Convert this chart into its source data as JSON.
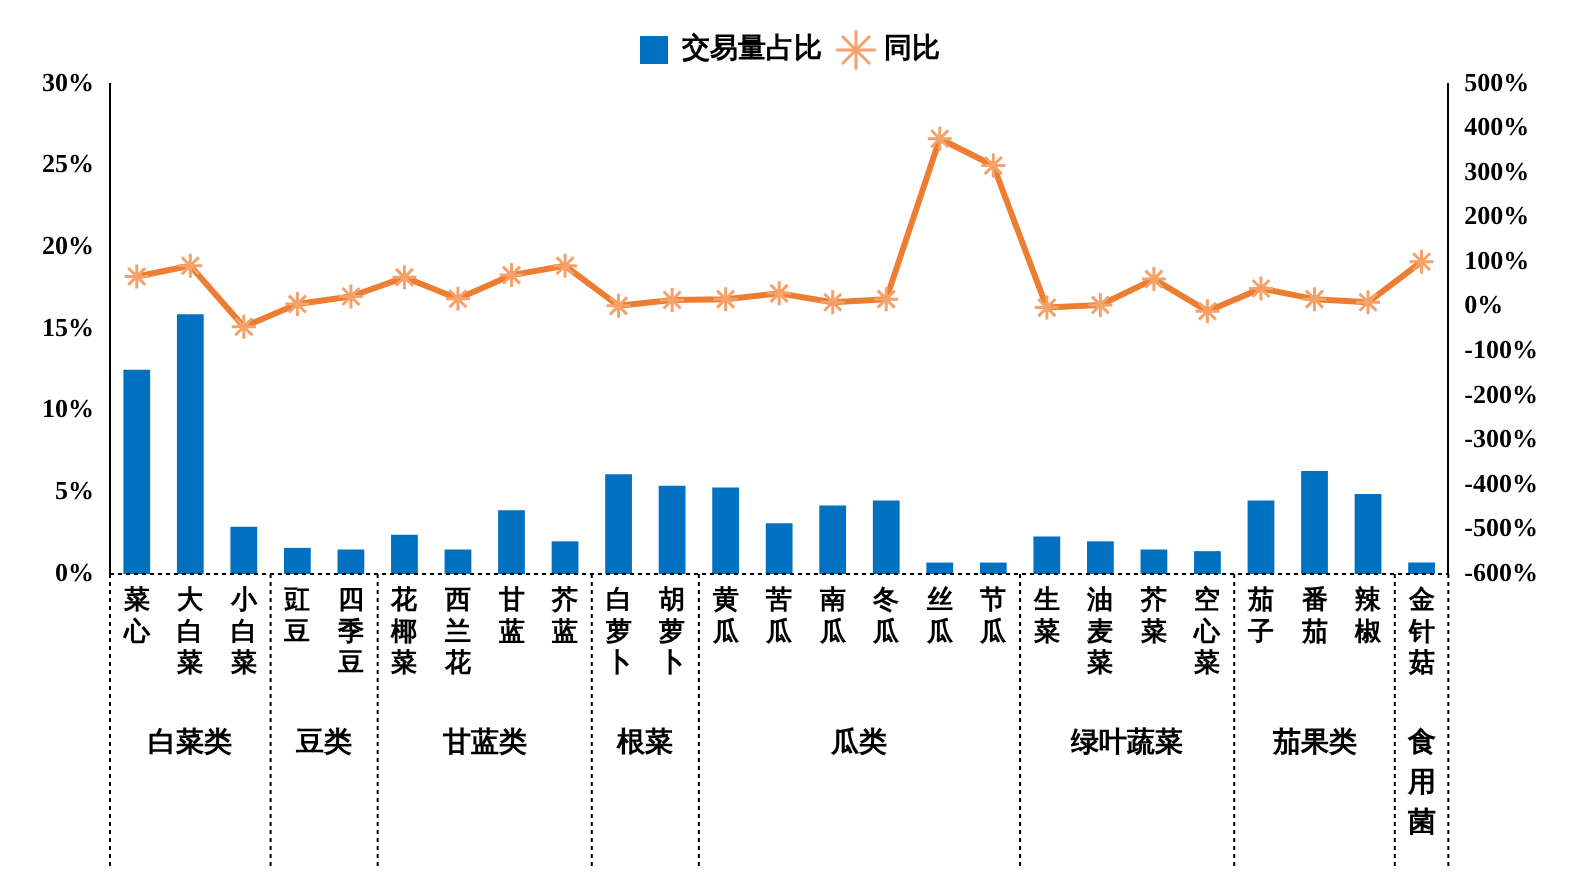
{
  "chart_data": {
    "type": "bar",
    "categories": [
      "菜心",
      "大白菜",
      "小白菜",
      "豇豆",
      "四季豆",
      "花椰菜",
      "西兰花",
      "甘蓝",
      "芥蓝",
      "白萝卜",
      "胡萝卜",
      "黄瓜",
      "苦瓜",
      "南瓜",
      "冬瓜",
      "丝瓜",
      "节瓜",
      "生菜",
      "油麦菜",
      "芥菜",
      "空心菜",
      "茄子",
      "番茄",
      "辣椒",
      "金针菇"
    ],
    "series": [
      {
        "name": "交易量占比",
        "color": "#0070c0",
        "values": [
          12.5,
          15.9,
          2.9,
          1.6,
          1.5,
          2.4,
          1.5,
          3.9,
          2.0,
          6.1,
          5.4,
          5.3,
          3.1,
          4.2,
          4.5,
          0.7,
          0.7,
          2.3,
          2.0,
          1.5,
          1.4,
          4.5,
          6.3,
          4.9,
          0.7
        ]
      },
      {
        "name": "同比",
        "type": "line",
        "axis": "y2",
        "color": "#ed7d31",
        "marker": "cross",
        "line_style": "solid",
        "values": [
          68,
          92,
          -45,
          6,
          23,
          66,
          18,
          71,
          92,
          2,
          15,
          17,
          30,
          10,
          17,
          377,
          317,
          -2,
          4,
          62,
          -10,
          41,
          17,
          10,
          101
        ]
      }
    ],
    "ylim": [
      0,
      30
    ],
    "yticks": [
      {
        "value": 0,
        "label": "0%"
      },
      {
        "value": 5,
        "label": "5%"
      },
      {
        "value": 10,
        "label": "10%"
      },
      {
        "value": 15,
        "label": "15%"
      },
      {
        "value": 20,
        "label": "20%"
      },
      {
        "value": 25,
        "label": "25%"
      },
      {
        "value": 30,
        "label": "30%"
      }
    ],
    "y2lim": [
      -600,
      500
    ],
    "y2ticks": [
      {
        "value": -600,
        "label": "-600%"
      },
      {
        "value": -500,
        "label": "-500%"
      },
      {
        "value": -400,
        "label": "-400%"
      },
      {
        "value": -300,
        "label": "-300%"
      },
      {
        "value": -200,
        "label": "-200%"
      },
      {
        "value": -100,
        "label": "-100%"
      },
      {
        "value": 0,
        "label": "0%"
      },
      {
        "value": 100,
        "label": "100%"
      },
      {
        "value": 200,
        "label": "200%"
      },
      {
        "value": 300,
        "label": "300%"
      },
      {
        "value": 400,
        "label": "400%"
      },
      {
        "value": 500,
        "label": "500%"
      }
    ],
    "annotations": [
      "白菜类",
      "豆类",
      "甘蓝类",
      "根菜",
      "瓜类",
      "绿叶蔬菜",
      "茄果类",
      "食用菌"
    ],
    "grid": false,
    "legend": "top"
  }
}
